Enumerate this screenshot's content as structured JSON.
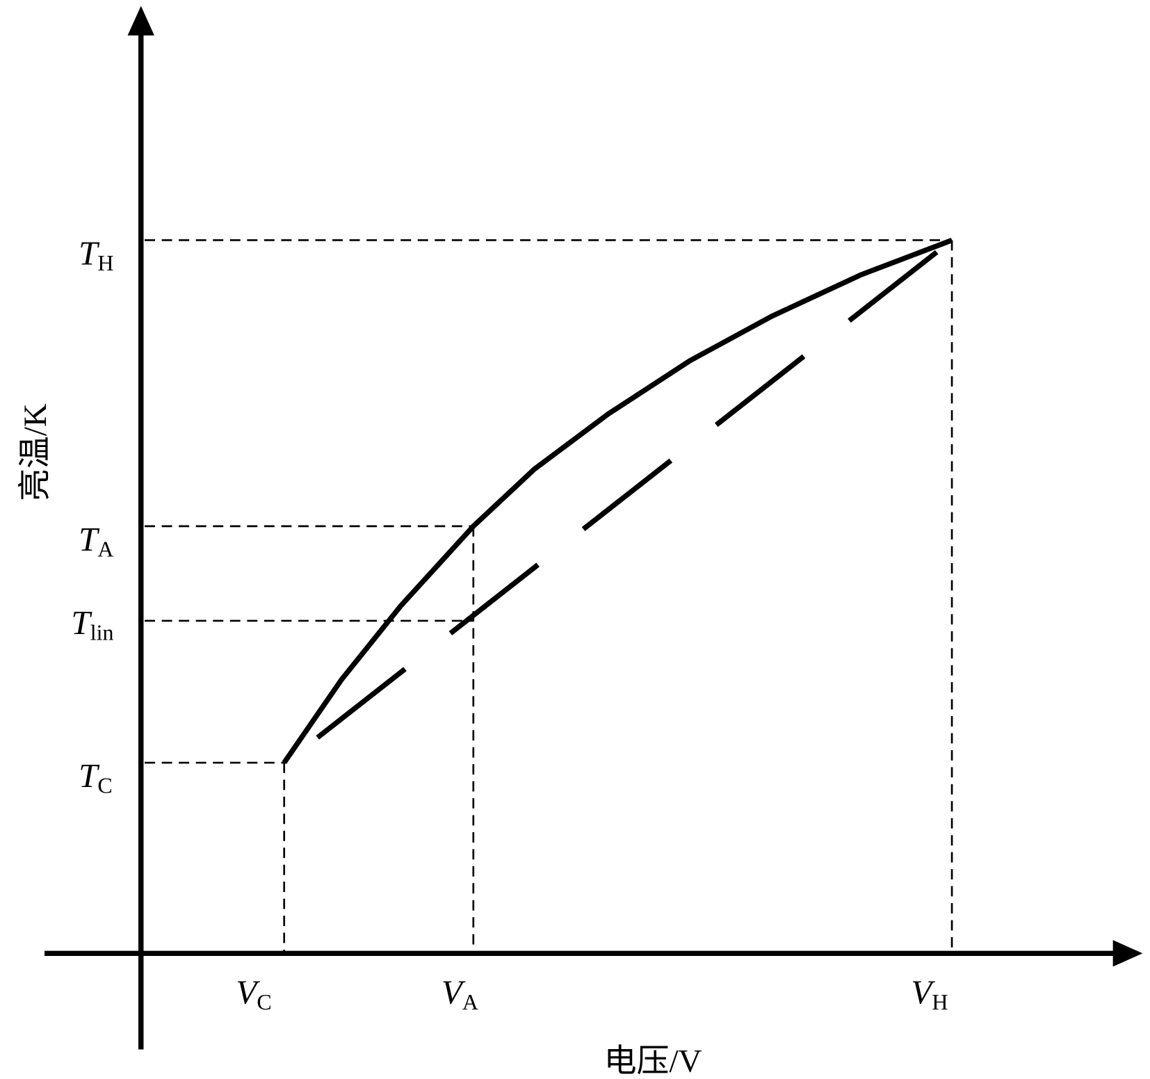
{
  "y_axis": {
    "label": "亮温/K",
    "ticks": [
      {
        "symbol": "T",
        "subscript": "H"
      },
      {
        "symbol": "T",
        "subscript": "A"
      },
      {
        "symbol": "T",
        "subscript": "lin"
      },
      {
        "symbol": "T",
        "subscript": "C"
      }
    ]
  },
  "x_axis": {
    "label": "电压/V",
    "ticks": [
      {
        "symbol": "V",
        "subscript": "C"
      },
      {
        "symbol": "V",
        "subscript": "A"
      },
      {
        "symbol": "V",
        "subscript": "H"
      }
    ]
  }
}
